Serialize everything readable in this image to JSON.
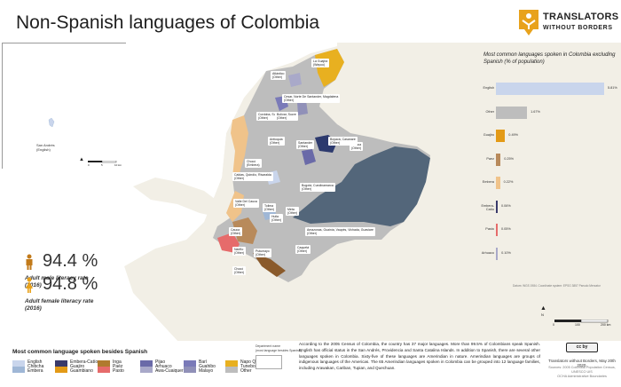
{
  "title": "Non-Spanish languages of Colombia",
  "logo": {
    "name": "TRANSLATORS",
    "sub": "WITHOUT BORDERS"
  },
  "inset": {
    "label": "San Andrés\n(English)",
    "scale": {
      "zero": "0",
      "mid": "5",
      "max": "10 km"
    }
  },
  "main_scale": {
    "zero": "0",
    "mid": "100",
    "max": "200 km"
  },
  "north": "N",
  "map_labels": [
    {
      "text": "La Guajira\n(Wayuu)"
    },
    {
      "text": "Atlántico\n(Other)"
    },
    {
      "text": "Cesar, Norte De Santander, Magdalena\n(Other)"
    },
    {
      "text": "Cordoba, Sucre\n(Other)"
    },
    {
      "text": "Bolívar, Sucre\n(Other)"
    },
    {
      "text": "Antioquia\n(Other)"
    },
    {
      "text": "Santander\n(Other)"
    },
    {
      "text": "Arauca\n(Other)"
    },
    {
      "text": "Chocó\n(Embera)"
    },
    {
      "text": "Boyacá, Casanare\n(Other)"
    },
    {
      "text": "Caldas, Quindío, Risaralda\n(Other)"
    },
    {
      "text": "Bogotá, Cundinamarca\n(Other)"
    },
    {
      "text": "Valle Del Cauca\n(Other)"
    },
    {
      "text": "Tolima\n(Other)"
    },
    {
      "text": "Huila\n(Other)"
    },
    {
      "text": "Meta\n(Other)"
    },
    {
      "text": "Cauca\n(Other)"
    },
    {
      "text": "Nariño\n(Other)"
    },
    {
      "text": "Putumayo\n(Other)"
    },
    {
      "text": "Caquetá\n(Other)"
    },
    {
      "text": "Amazonas, Guainía, Vaupés, Vichada, Guaviare\n(Other)"
    },
    {
      "text": "Chocó\n(Other)"
    }
  ],
  "chart": {
    "title": "Most common languages spoken in Colombia excluding Spanish (% of population)"
  },
  "chart_data": {
    "type": "bar",
    "categories": [
      "English",
      "Other",
      "Guajiro",
      "Paez",
      "Embera",
      "Embera-Catío",
      "Pasto",
      "Arhuaco"
    ],
    "values": [
      5.81,
      1.67,
      0.49,
      0.25,
      0.22,
      0.06,
      0.05,
      0.1
    ],
    "value_labels": [
      "5.81%",
      "1.67%",
      "0.49%",
      "0.25%",
      "0.22%",
      "0.06%",
      "0.05%",
      "0.10%"
    ],
    "colors": [
      "#c9d5ec",
      "#bdbdbd",
      "#e39a17",
      "#b88a5b",
      "#f0c38a",
      "#3a3a6b",
      "#e66b6b",
      "#a9a9c9"
    ]
  },
  "literacy": {
    "male": {
      "value": "94.4 %",
      "label": "Adult male literacy rate\n(2016)",
      "color": "#c27a1a"
    },
    "female": {
      "value": "94.8 %",
      "label": "Adult female literacy rate\n(2016)",
      "color": "#e8a21c"
    }
  },
  "legend": {
    "title": "Most common language spoken besides Spanish",
    "items": [
      {
        "lines": [
          "English",
          "Chibcha",
          "Embera"
        ],
        "color": "#c9d5ec",
        "color2": "#9fb7d6"
      },
      {
        "lines": [
          "Embera-Catío",
          "Guajiro",
          "Guambiano"
        ],
        "color": "#3a3a6b",
        "color2": "#e39a17"
      },
      {
        "lines": [
          "Inga",
          "Paéz",
          "Pasto"
        ],
        "color": "#b07a2e",
        "color2": "#e66b6b"
      },
      {
        "lines": [
          "Pijao",
          "Arhuaco",
          "Awa-Cuaiquer"
        ],
        "color": "#6a6aa8",
        "color2": "#a9a9c9"
      },
      {
        "lines": [
          "Barí",
          "Guahibo",
          "Malayo"
        ],
        "color": "#7a7ab8",
        "color2": "#9090b8"
      },
      {
        "lines": [
          "Napo Quechua",
          "Tunebo",
          "Other"
        ],
        "color": "#e8b020",
        "color2": "#bdbdbd"
      }
    ],
    "dept_note": "Department name\n(most language besides Spanish)"
  },
  "census_text": "According to the 2005 Census of Colombia, the country has 37 major languages. More than 99.5% of Colombians speak Spanish. English has official status in the San Andrés, Providencia and Santa Catalina Islands. In addition to Spanish, there are several other languages spoken in Colombia. Sixty-five of these languages are Amerindian in nature. Amerindian languages are groups of indigenous languages of the Americas. The 65 Amerindian languages spoken in Colombia can be grouped into 12 language families, including Arawakan, Cariban, Tupian, and Quechuan.",
  "credits": "Translators without Borders, May 20th 2020.",
  "cc_label": "cc by",
  "sources": "Sources: 2005 Colombia Population Census,\nUNESCO UIS\nOCHA Administrative Boundaries",
  "projection_note": "Datum: WGS 1984. Coordinate system: EPSG 3857 Pseudo Mercator"
}
